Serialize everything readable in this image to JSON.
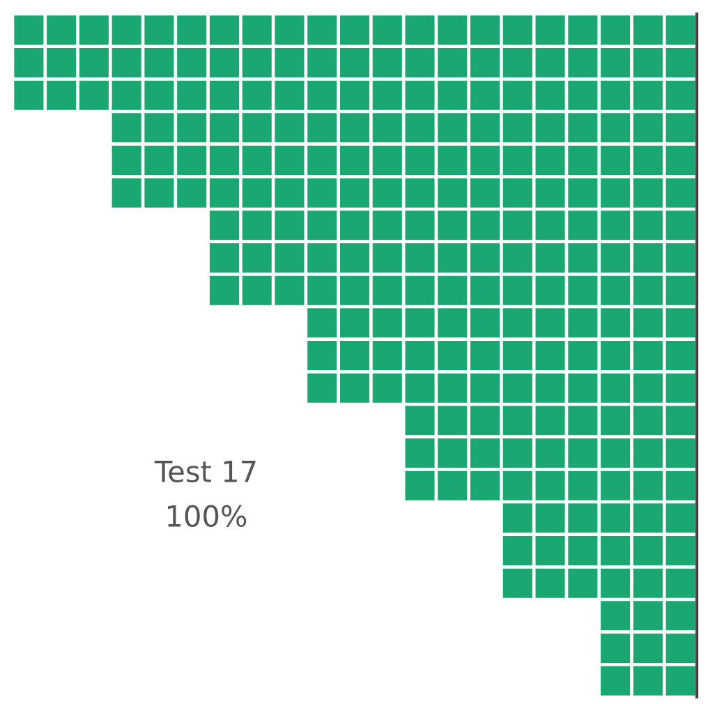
{
  "chart_data": {
    "type": "other",
    "color": "#1aa772",
    "categories": [
      "Test 17"
    ],
    "values": [
      100
    ],
    "value_labels": [
      "100%"
    ]
  }
}
